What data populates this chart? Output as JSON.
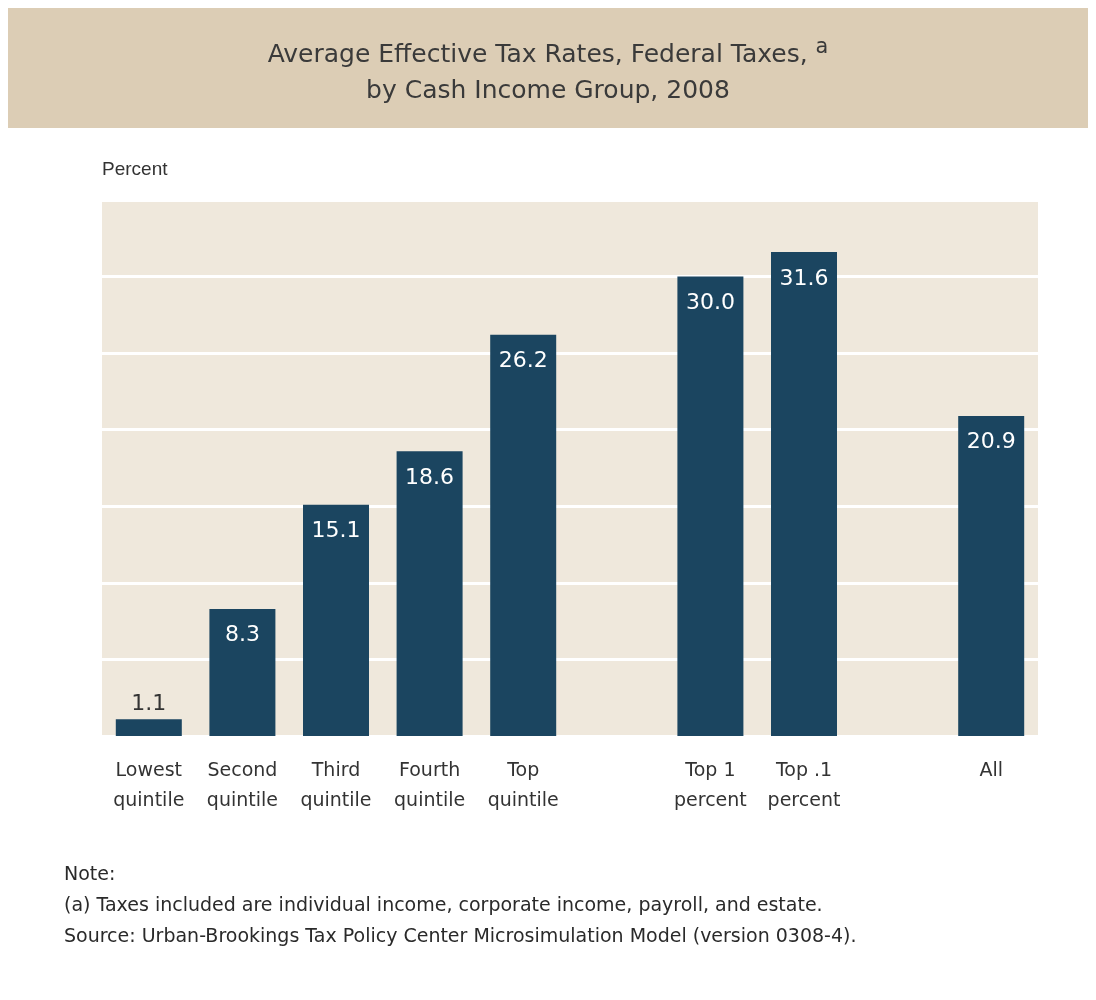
{
  "chart_data": {
    "type": "bar",
    "title": "Average Effective Tax Rates, Federal Taxes, $^{a}$\nby Cash Income Group, 2008",
    "ylabel": "Percent",
    "categories": [
      "Lowest\nquintile",
      "Second\nquintile",
      "Third\nquintile",
      "Fourth\nquintile",
      "Top\nquintile",
      null,
      "Top 1\npercent",
      "Top .1\npercent",
      null,
      "All"
    ],
    "values": [
      1.1,
      8.3,
      15.1,
      18.6,
      26.2,
      null,
      30.0,
      31.6,
      null,
      20.9
    ],
    "color": "#1b4560",
    "value_labels": [
      "1.1",
      "8.3",
      "15.1",
      "18.6",
      "26.2",
      null,
      "30.0",
      "31.6",
      null,
      "20.9"
    ],
    "ylim": [
      0,
      35
    ],
    "yticks": [
      {
        "value": 0,
        "label": null
      },
      {
        "value": 5,
        "label": null
      },
      {
        "value": 10,
        "label": null
      },
      {
        "value": 15,
        "label": null
      },
      {
        "value": 20,
        "label": null
      },
      {
        "value": 25,
        "label": null
      },
      {
        "value": 30,
        "label": null
      },
      {
        "value": 35,
        "label": null
      }
    ],
    "grid": "y",
    "tick_labels": "x",
    "annotations": [
      "Note:",
      "(a) Taxes included are individual income, corporate income, payroll, and estate.",
      "Source:  Urban-Brookings Tax Policy Center Microsimulation Model (version 0308-4)."
    ]
  }
}
